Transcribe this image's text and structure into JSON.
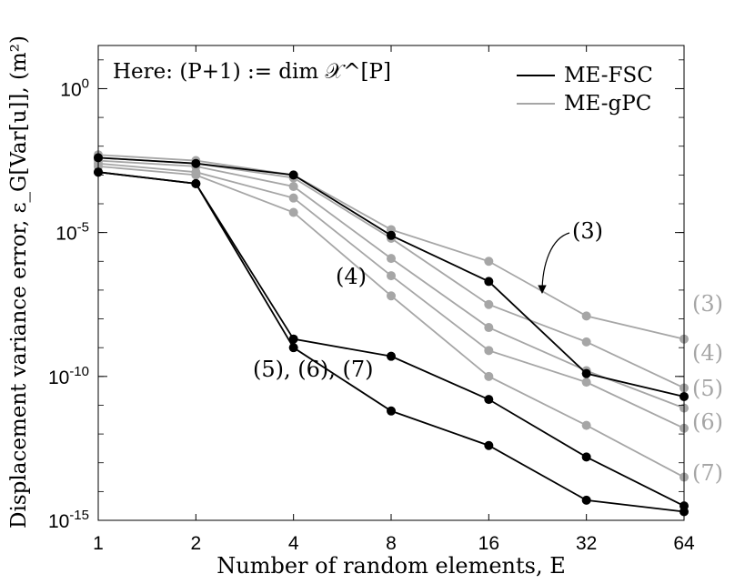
{
  "chart_data": {
    "type": "line",
    "xlabel": "Number of random elements, E",
    "ylabel": "Displacement variance error, ε_G[Var[u]], (m²)",
    "x": [
      1,
      2,
      4,
      8,
      16,
      32,
      64
    ],
    "x_tick_labels": [
      "1",
      "2",
      "4",
      "8",
      "16",
      "32",
      "64"
    ],
    "x_scale": "log2",
    "y_scale": "log10",
    "ylim_exponents": [
      -15,
      1.5
    ],
    "y_ticks": [
      {
        "exp": 0,
        "base": "10",
        "sup": "0"
      },
      {
        "exp": -5,
        "base": "10",
        "sup": "-5"
      },
      {
        "exp": -10,
        "base": "10",
        "sup": "-10"
      },
      {
        "exp": -15,
        "base": "10",
        "sup": "-15"
      }
    ],
    "annotation_text": "Here: (P+1) := dim 𝒳^[P]",
    "legend": {
      "position": "top-right",
      "entries": [
        {
          "label": "ME-FSC",
          "color": "#000000"
        },
        {
          "label": "ME-gPC",
          "color": "#a6a6a6"
        }
      ]
    },
    "series": [
      {
        "group": "ME-gPC",
        "label": "(3)",
        "color": "#a6a6a6",
        "log10_values": [
          -2.3,
          -2.5,
          -3.0,
          -4.9,
          -6.0,
          -7.9,
          -8.7
        ]
      },
      {
        "group": "ME-gPC",
        "label": "(4)",
        "color": "#a6a6a6",
        "log10_values": [
          -2.4,
          -2.6,
          -3.1,
          -5.2,
          -7.5,
          -8.8,
          -10.4
        ]
      },
      {
        "group": "ME-gPC",
        "label": "(5)",
        "color": "#a6a6a6",
        "log10_values": [
          -2.5,
          -2.7,
          -3.4,
          -5.9,
          -8.3,
          -9.8,
          -11.1
        ]
      },
      {
        "group": "ME-gPC",
        "label": "(6)",
        "color": "#a6a6a6",
        "log10_values": [
          -2.6,
          -2.9,
          -3.8,
          -6.5,
          -9.1,
          -10.2,
          -11.8
        ]
      },
      {
        "group": "ME-gPC",
        "label": "(7)",
        "color": "#a6a6a6",
        "log10_values": [
          -2.7,
          -3.0,
          -4.3,
          -7.2,
          -10.0,
          -11.7,
          -13.5
        ]
      },
      {
        "group": "ME-FSC",
        "label": "(3)",
        "color": "#000000",
        "log10_values": [
          -2.4,
          -2.6,
          -3.0,
          -5.1,
          -6.7,
          -9.9,
          -10.7
        ]
      },
      {
        "group": "ME-FSC",
        "label": "(4)",
        "color": "#000000",
        "log10_values": [
          -2.9,
          -3.3,
          -8.7,
          -9.3,
          -10.8,
          -12.8,
          -14.5
        ]
      },
      {
        "group": "ME-FSC",
        "label": "(5), (6), (7)",
        "color": "#000000",
        "log10_values": [
          -2.9,
          -3.3,
          -9.0,
          -11.2,
          -12.4,
          -14.3,
          -14.7
        ]
      }
    ],
    "series_labels": [
      {
        "text": "(3)",
        "group": "ME-gPC-right"
      },
      {
        "text": "(4)",
        "group": "ME-gPC-right"
      },
      {
        "text": "(5)",
        "group": "ME-gPC-right"
      },
      {
        "text": "(6)",
        "group": "ME-gPC-right"
      },
      {
        "text": "(7)",
        "group": "ME-gPC-right"
      },
      {
        "text": "(3)",
        "group": "ME-FSC-callout"
      },
      {
        "text": "(4)",
        "group": "ME-FSC-inline"
      },
      {
        "text": "(5), (6), (7)",
        "group": "ME-FSC-inline"
      }
    ]
  }
}
